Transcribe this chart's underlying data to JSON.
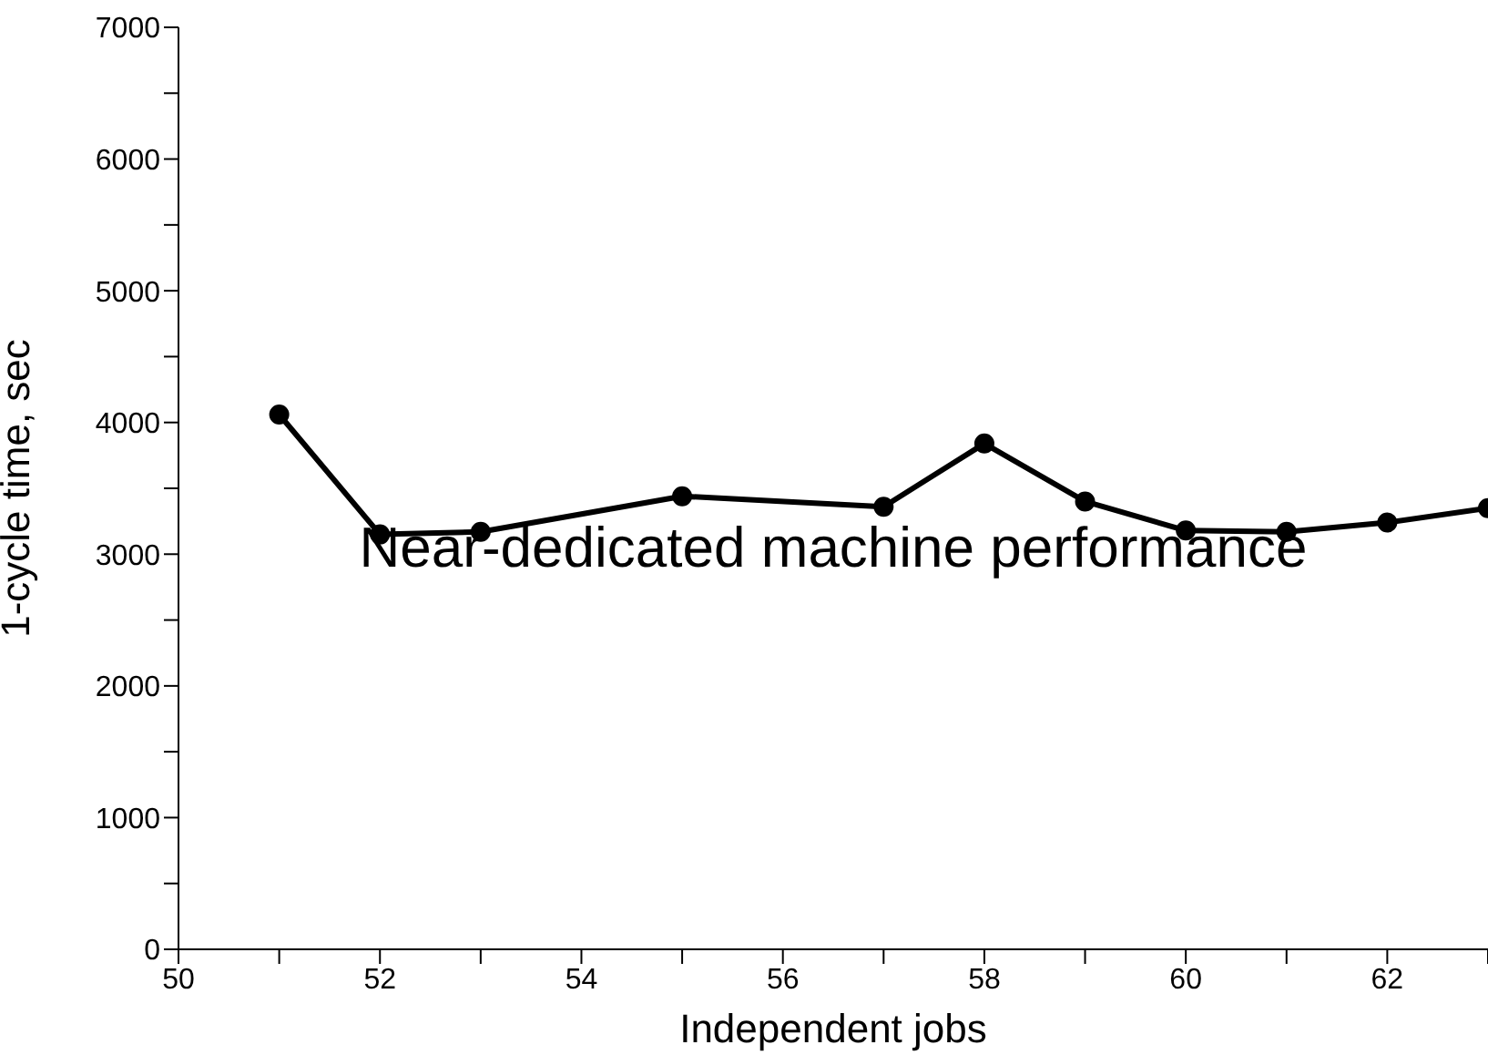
{
  "chart_data": {
    "type": "line",
    "xlabel": "Independent jobs",
    "ylabel": "1-cycle time, sec",
    "annotations": [
      "Near-dedicated machine performance"
    ],
    "x": [
      51,
      52,
      53,
      55,
      57,
      58,
      59,
      60,
      61,
      62,
      63
    ],
    "series": [
      {
        "color": "#000000",
        "values": [
          4060,
          3150,
          3170,
          3440,
          3360,
          3840,
          3400,
          3180,
          3170,
          3240,
          3350
        ]
      }
    ],
    "xlim": [
      50,
      63
    ],
    "xticks": [
      50,
      {
        "value": 51,
        "label": null
      },
      52,
      {
        "value": 53,
        "label": null
      },
      54,
      {
        "value": 55,
        "label": null
      },
      56,
      {
        "value": 57,
        "label": null
      },
      58,
      {
        "value": 59,
        "label": null
      },
      60,
      {
        "value": 61,
        "label": null
      },
      62,
      {
        "value": 63,
        "label": null
      }
    ],
    "ylim": [
      0,
      7000
    ],
    "yticks": [
      0,
      {
        "value": 500,
        "label": null
      },
      1000,
      {
        "value": 1500,
        "label": null
      },
      2000,
      {
        "value": 2500,
        "label": null
      },
      3000,
      {
        "value": 3500,
        "label": null
      },
      4000,
      {
        "value": 4500,
        "label": null
      },
      5000,
      {
        "value": 5500,
        "label": null
      },
      6000,
      {
        "value": 6500,
        "label": null
      },
      7000
    ],
    "grid": false,
    "marker": "circle",
    "line_style": "solid"
  }
}
